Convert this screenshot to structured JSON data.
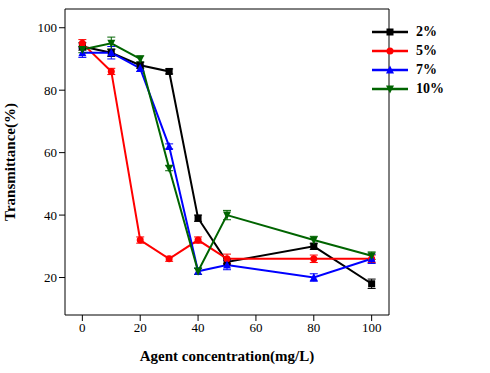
{
  "chart_data": {
    "type": "line",
    "x_label": "Agent concentration(mg/L)",
    "y_label": "Transmittance(%)",
    "x": [
      0,
      10,
      20,
      30,
      40,
      50,
      80,
      100
    ],
    "xlim": [
      -6,
      106
    ],
    "xticks": [
      0,
      20,
      40,
      60,
      80,
      100
    ],
    "ylim": [
      8,
      106
    ],
    "yticks": [
      20,
      40,
      60,
      80,
      100
    ],
    "grid": false,
    "legend": "upper right",
    "series": [
      {
        "name": "2%",
        "color": "#000000",
        "marker": "square",
        "values": [
          94,
          92,
          88,
          86,
          39,
          25,
          30,
          18
        ],
        "errors": [
          1.2,
          1.2,
          1,
          0.8,
          1,
          1,
          1,
          1.5
        ]
      },
      {
        "name": "5%",
        "color": "#ff0000",
        "marker": "circle",
        "values": [
          95,
          86,
          32,
          26,
          32,
          26,
          26,
          26
        ],
        "errors": [
          1.2,
          1,
          1,
          0.8,
          1,
          1.5,
          1.2,
          1.2
        ]
      },
      {
        "name": "7%",
        "color": "#0000ff",
        "marker": "triangle",
        "values": [
          92,
          92,
          87,
          62,
          22,
          24,
          20,
          26
        ],
        "errors": [
          1.5,
          2,
          1,
          0.8,
          1,
          1.5,
          1.2,
          1.5
        ]
      },
      {
        "name": "10%",
        "color": "#006400",
        "marker": "triangle-down",
        "values": [
          93,
          95,
          90,
          55,
          22,
          40,
          32,
          27
        ],
        "errors": [
          1,
          2,
          1,
          0.8,
          1,
          1.5,
          1.2,
          1.2
        ]
      }
    ]
  }
}
